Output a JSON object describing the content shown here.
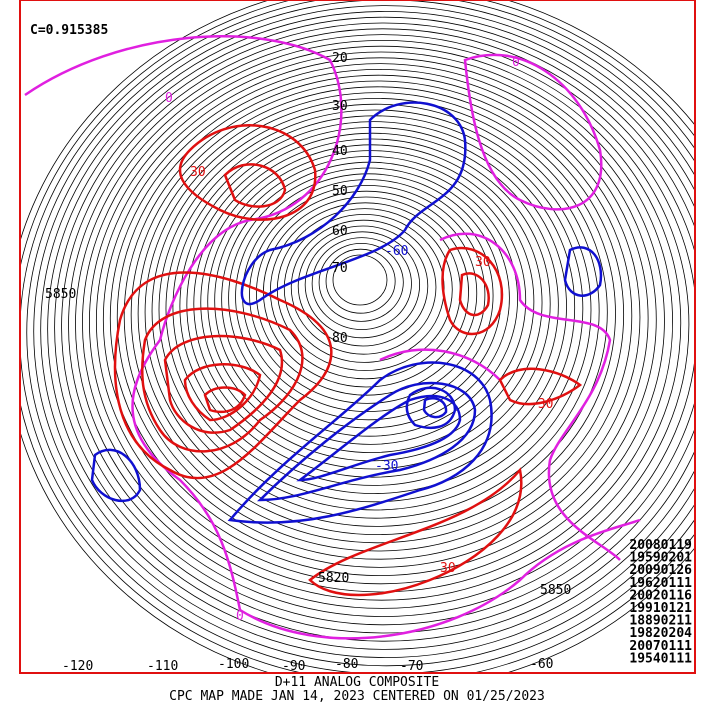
{
  "correlation": "C=0.915385",
  "analog_dates": [
    "20080119",
    "19590201",
    "20090126",
    "19620111",
    "20020116",
    "19910121",
    "18890211",
    "19820204",
    "20070111",
    "19540111"
  ],
  "footer": {
    "title": "D+11 ANALOG COMPOSITE",
    "subtitle": "CPC MAP MADE JAN 14, 2023 CENTERED ON 01/25/2023"
  },
  "longitude_labels": [
    "-120",
    "-110",
    "-100",
    "-90",
    "-80",
    "-70",
    "-60"
  ],
  "height_labels": [
    "5850",
    "5820",
    "5850",
    "20",
    "30",
    "40",
    "50",
    "60",
    "70",
    "80"
  ],
  "anomaly_labels": [
    "0",
    "0",
    "0",
    "30",
    "-30",
    "-60",
    "30",
    "-30",
    "30"
  ]
}
